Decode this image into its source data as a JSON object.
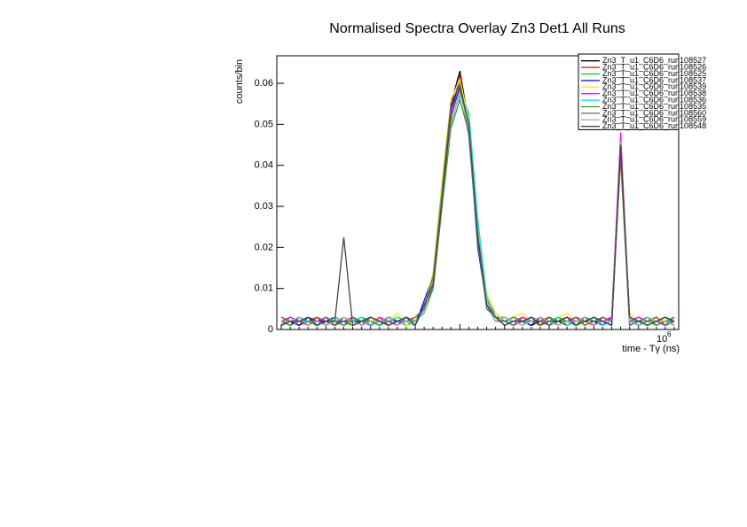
{
  "chart_data": {
    "type": "line",
    "title": "Normalised Spectra Overlay Zn3 Det1 All Runs",
    "x_label": "time - Tγ (ns)",
    "x_multiplier": "10",
    "x_multiplier_exp": "6",
    "y_label": "counts/bin",
    "ylim": [
      0,
      0.0667
    ],
    "yticks": [
      0,
      0.01,
      0.02,
      0.03,
      0.04,
      0.05,
      0.06
    ],
    "legend": "top-right",
    "categories": [
      null,
      null,
      null,
      null,
      null,
      null,
      null,
      null,
      null,
      null,
      null,
      null,
      null,
      null,
      null,
      null,
      null,
      null,
      null,
      null,
      null,
      null,
      null,
      null,
      null,
      null,
      null,
      null,
      null,
      null,
      null,
      null,
      null,
      null,
      null,
      null,
      null,
      null,
      null,
      null,
      null,
      null,
      null,
      null,
      null
    ],
    "series": [
      {
        "name": "Zn3_T_u1_C6D6_run108527",
        "color": "#000000",
        "values": [
          0.002,
          0.001,
          0.003,
          0.002,
          0.001,
          0.002,
          0.003,
          0.002,
          0.001,
          0.002,
          0.003,
          0.002,
          0.002,
          0.001,
          0.003,
          0.002,
          0.004,
          0.012,
          0.035,
          0.055,
          0.063,
          0.05,
          0.022,
          0.006,
          0.003,
          0.002,
          0.003,
          0.002,
          0.001,
          0.002,
          0.003,
          0.002,
          0.001,
          0.002,
          0.003,
          0.002,
          0.002,
          0.001,
          0.044,
          0.002,
          0.001,
          0.002,
          0.003,
          0.002,
          0.001
        ]
      },
      {
        "name": "Zn3_T_u1_C6D6_run108526",
        "color": "#ff0000",
        "values": [
          0.003,
          0.002,
          0.001,
          0.002,
          0.003,
          0.001,
          0.002,
          0.002,
          0.003,
          0.001,
          0.002,
          0.003,
          0.001,
          0.002,
          0.002,
          0.003,
          0.005,
          0.01,
          0.03,
          0.052,
          0.062,
          0.048,
          0.025,
          0.007,
          0.004,
          0.002,
          0.001,
          0.003,
          0.002,
          0.002,
          0.003,
          0.001,
          0.002,
          0.003,
          0.002,
          0.001,
          0.003,
          0.002,
          0.042,
          0.003,
          0.002,
          0.001,
          0.002,
          0.003,
          0.002
        ]
      },
      {
        "name": "Zn3_T_u1_C6D6_run108525",
        "color": "#00cc00",
        "values": [
          0.001,
          0.003,
          0.002,
          0.002,
          0.001,
          0.003,
          0.002,
          0.001,
          0.002,
          0.003,
          0.002,
          0.001,
          0.003,
          0.002,
          0.001,
          0.002,
          0.006,
          0.011,
          0.032,
          0.05,
          0.058,
          0.052,
          0.024,
          0.008,
          0.003,
          0.003,
          0.002,
          0.001,
          0.003,
          0.002,
          0.001,
          0.003,
          0.002,
          0.002,
          0.001,
          0.003,
          0.002,
          0.002,
          0.043,
          0.002,
          0.003,
          0.002,
          0.001,
          0.002,
          0.003
        ]
      },
      {
        "name": "Zn3_T_u1_C6D6_run108537",
        "color": "#0000ff",
        "values": [
          0.002,
          0.002,
          0.001,
          0.003,
          0.002,
          0.002,
          0.001,
          0.003,
          0.002,
          0.002,
          0.001,
          0.002,
          0.003,
          0.002,
          0.002,
          0.001,
          0.007,
          0.013,
          0.033,
          0.054,
          0.06,
          0.049,
          0.02,
          0.006,
          0.002,
          0.003,
          0.002,
          0.002,
          0.001,
          0.003,
          0.002,
          0.002,
          0.003,
          0.001,
          0.002,
          0.002,
          0.001,
          0.003,
          0.045,
          0.001,
          0.002,
          0.003,
          0.002,
          0.001,
          0.002
        ]
      },
      {
        "name": "Zn3_T_u1_C6D6_run108539",
        "color": "#ffee00",
        "values": [
          0.003,
          0.001,
          0.002,
          0.001,
          0.003,
          0.002,
          0.002,
          0.003,
          0.001,
          0.002,
          0.002,
          0.003,
          0.002,
          0.004,
          0.001,
          0.003,
          0.005,
          0.014,
          0.036,
          0.056,
          0.061,
          0.051,
          0.026,
          0.009,
          0.004,
          0.002,
          0.003,
          0.004,
          0.002,
          0.001,
          0.002,
          0.003,
          0.004,
          0.002,
          0.001,
          0.003,
          0.002,
          0.002,
          0.041,
          0.004,
          0.002,
          0.001,
          0.003,
          0.002,
          0.002
        ]
      },
      {
        "name": "Zn3_T_u1_C6D6_run108538",
        "color": "#ff00ff",
        "values": [
          0.002,
          0.003,
          0.002,
          0.001,
          0.002,
          0.003,
          0.001,
          0.002,
          0.003,
          0.002,
          0.001,
          0.003,
          0.002,
          0.001,
          0.003,
          0.002,
          0.004,
          0.012,
          0.031,
          0.053,
          0.059,
          0.05,
          0.023,
          0.007,
          0.003,
          0.001,
          0.002,
          0.003,
          0.002,
          0.003,
          0.001,
          0.002,
          0.003,
          0.002,
          0.003,
          0.001,
          0.002,
          0.003,
          0.048,
          0.002,
          0.003,
          0.002,
          0.002,
          0.001,
          0.003
        ]
      },
      {
        "name": "Zn3_T_u1_C6D6_run108536",
        "color": "#00e0e0",
        "values": [
          0.001,
          0.002,
          0.003,
          0.002,
          0.002,
          0.001,
          0.003,
          0.002,
          0.002,
          0.003,
          0.001,
          0.002,
          0.002,
          0.003,
          0.002,
          0.001,
          0.005,
          0.011,
          0.034,
          0.051,
          0.057,
          0.053,
          0.027,
          0.008,
          0.003,
          0.002,
          0.002,
          0.001,
          0.003,
          0.002,
          0.002,
          0.003,
          0.001,
          0.002,
          0.002,
          0.003,
          0.001,
          0.002,
          0.044,
          0.003,
          0.001,
          0.002,
          0.002,
          0.003,
          0.001
        ]
      },
      {
        "name": "Zn3_T_u1_C6D6_run108535",
        "color": "#339933",
        "values": [
          0.002,
          0.001,
          0.002,
          0.003,
          0.001,
          0.002,
          0.002,
          0.001,
          0.003,
          0.002,
          0.002,
          0.001,
          0.002,
          0.002,
          0.003,
          0.002,
          0.004,
          0.01,
          0.03,
          0.049,
          0.056,
          0.048,
          0.021,
          0.006,
          0.002,
          0.002,
          0.003,
          0.002,
          0.002,
          0.001,
          0.003,
          0.002,
          0.002,
          0.001,
          0.003,
          0.002,
          0.002,
          0.001,
          0.043,
          0.002,
          0.002,
          0.003,
          0.001,
          0.002,
          0.002
        ]
      },
      {
        "name": "Zn3_T_u1_C6D6_run108560",
        "color": "#666666",
        "values": [
          0.003,
          0.002,
          0.002,
          0.001,
          0.003,
          0.002,
          0.001,
          0.002,
          0.002,
          0.001,
          0.003,
          0.002,
          0.001,
          0.002,
          0.002,
          0.003,
          0.005,
          0.013,
          0.034,
          0.055,
          0.06,
          0.047,
          0.022,
          0.005,
          0.003,
          0.002,
          0.001,
          0.002,
          0.003,
          0.002,
          0.001,
          0.002,
          0.002,
          0.003,
          0.001,
          0.002,
          0.003,
          0.002,
          0.042,
          0.001,
          0.002,
          0.002,
          0.003,
          0.001,
          0.002
        ]
      },
      {
        "name": "Zn3_T_u1_C6D6_run108559",
        "color": "#b0b0b0",
        "values": [
          0.002,
          0.002,
          0.003,
          0.001,
          0.002,
          0.001,
          0.002,
          0.003,
          0.002,
          0.001,
          0.002,
          0.002,
          0.003,
          0.001,
          0.002,
          0.002,
          0.004,
          0.012,
          0.033,
          0.05,
          0.058,
          0.049,
          0.024,
          0.007,
          0.002,
          0.003,
          0.002,
          0.001,
          0.002,
          0.003,
          0.002,
          0.001,
          0.002,
          0.002,
          0.003,
          0.001,
          0.002,
          0.002,
          0.046,
          0.002,
          0.001,
          0.003,
          0.002,
          0.002,
          0.001
        ]
      },
      {
        "name": "Zn3_T_u1_C6D6_run108548",
        "color": "#444444",
        "values": [
          0.001,
          0.002,
          0.002,
          0.003,
          0.001,
          0.002,
          0.002,
          0.0225,
          0.001,
          0.002,
          0.003,
          0.002,
          0.001,
          0.002,
          0.003,
          0.001,
          0.006,
          0.011,
          0.032,
          0.052,
          0.059,
          0.05,
          0.023,
          0.006,
          0.003,
          0.001,
          0.002,
          0.002,
          0.003,
          0.001,
          0.002,
          0.002,
          0.003,
          0.001,
          0.002,
          0.003,
          0.002,
          0.001,
          0.045,
          0.003,
          0.002,
          0.001,
          0.002,
          0.003,
          0.002
        ]
      }
    ]
  }
}
